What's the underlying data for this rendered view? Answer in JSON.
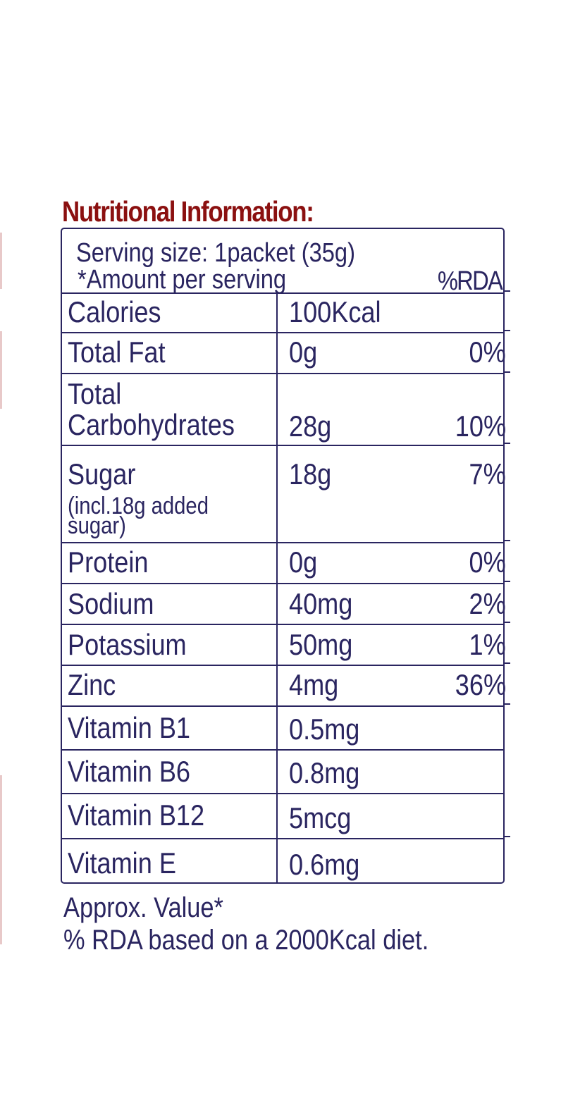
{
  "title": "Nutritional Information:",
  "serving": {
    "size_text": "Serving size: 1packet (35g)",
    "amount_text": "*Amount per serving",
    "rda_header": "%RDA"
  },
  "rows": [
    {
      "name": "Calories",
      "amount": "100Kcal",
      "rda": ""
    },
    {
      "name": "Total Fat",
      "amount": "0g",
      "rda": "0%"
    },
    {
      "name_line1": "Total",
      "name_line2": "Carbohydrates",
      "amount": "28g",
      "rda": "10%"
    },
    {
      "name": "Sugar",
      "note_line1": "(incl.18g added",
      "note_line2": "sugar)",
      "amount": "18g",
      "rda": "7%"
    },
    {
      "name": "Protein",
      "amount": "0g",
      "rda": "0%"
    },
    {
      "name": "Sodium",
      "amount": "40mg",
      "rda": "2%"
    },
    {
      "name": "Potassium",
      "amount": "50mg",
      "rda": "1%"
    },
    {
      "name": "Zinc",
      "amount": "4mg",
      "rda": "36%"
    },
    {
      "name": "Vitamin B1",
      "amount": "0.5mg",
      "rda": ""
    },
    {
      "name": "Vitamin B6",
      "amount": "0.8mg",
      "rda": ""
    },
    {
      "name": "Vitamin B12",
      "amount": "5mcg",
      "rda": ""
    },
    {
      "name": "Vitamin E",
      "amount": "0.6mg",
      "rda": ""
    }
  ],
  "footer": {
    "approx": "Approx. Value*",
    "basis": "% RDA based on a 2000Kcal diet."
  },
  "colors": {
    "title": "#8b1010",
    "text": "#2a2560",
    "border": "#2a2560"
  }
}
